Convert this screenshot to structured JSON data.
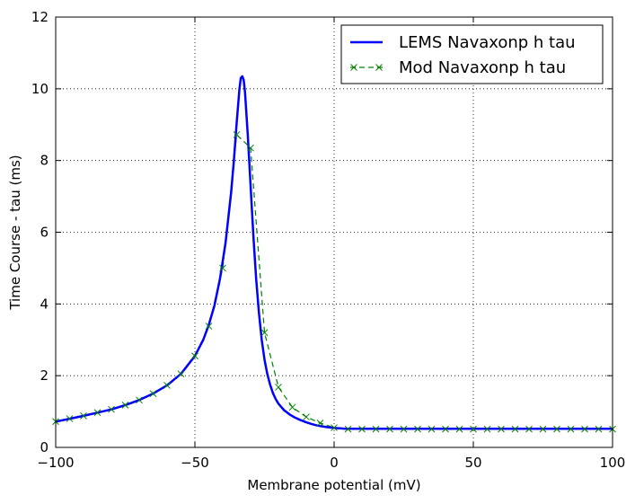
{
  "chart_data": {
    "type": "line",
    "title": "",
    "xlabel": "Membrane potential (mV)",
    "ylabel": "Time Course - tau (ms)",
    "xlim": [
      -100,
      100
    ],
    "ylim": [
      0,
      12
    ],
    "x_ticks": [
      -100,
      -50,
      0,
      50,
      100
    ],
    "y_ticks": [
      0,
      2,
      4,
      6,
      8,
      10,
      12
    ],
    "x_tick_labels": [
      "−100",
      "−50",
      "0",
      "50",
      "100"
    ],
    "y_tick_labels": [
      "0",
      "2",
      "4",
      "6",
      "8",
      "10",
      "12"
    ],
    "grid": true,
    "legend_position": "top-right",
    "series": [
      {
        "name": "LEMS Navaxonp h tau",
        "style": "solid",
        "color": "#0000ff",
        "x": [
          -100,
          -95,
          -90,
          -85,
          -80,
          -75,
          -70,
          -65,
          -60,
          -55,
          -50,
          -47,
          -45,
          -43,
          -41,
          -39,
          -37,
          -36,
          -35,
          -34,
          -33.5,
          -33,
          -32.5,
          -32,
          -31,
          -30,
          -29,
          -28,
          -27,
          -26,
          -25,
          -24,
          -23,
          -22,
          -21,
          -20,
          -18,
          -16,
          -14,
          -12,
          -10,
          -8,
          -6,
          -4,
          -2,
          0,
          2,
          4,
          6,
          10,
          20,
          40,
          60,
          80,
          100
        ],
        "y": [
          0.72,
          0.8,
          0.88,
          0.97,
          1.06,
          1.18,
          1.32,
          1.5,
          1.73,
          2.05,
          2.55,
          3.0,
          3.42,
          3.95,
          4.7,
          5.7,
          7.1,
          8.0,
          9.05,
          10.0,
          10.3,
          10.35,
          10.25,
          9.9,
          8.7,
          7.3,
          5.9,
          4.7,
          3.75,
          3.0,
          2.45,
          2.05,
          1.75,
          1.52,
          1.35,
          1.22,
          1.04,
          0.92,
          0.83,
          0.76,
          0.7,
          0.65,
          0.61,
          0.58,
          0.56,
          0.54,
          0.53,
          0.52,
          0.52,
          0.52,
          0.52,
          0.52,
          0.52,
          0.52,
          0.52
        ]
      },
      {
        "name": "Mod Navaxonp h tau",
        "style": "dashed",
        "marker": "x",
        "color": "#008000",
        "x": [
          -100,
          -95,
          -90,
          -85,
          -80,
          -75,
          -70,
          -65,
          -60,
          -55,
          -50,
          -45,
          -40,
          -35,
          -30,
          -25,
          -20,
          -15,
          -10,
          -5,
          0,
          5,
          10,
          15,
          20,
          25,
          30,
          35,
          40,
          45,
          50,
          55,
          60,
          65,
          70,
          75,
          80,
          85,
          90,
          95,
          100
        ],
        "y": [
          0.72,
          0.8,
          0.88,
          0.97,
          1.06,
          1.18,
          1.32,
          1.5,
          1.73,
          2.05,
          2.55,
          3.38,
          5.0,
          8.72,
          8.35,
          3.2,
          1.68,
          1.12,
          0.85,
          0.68,
          0.55,
          0.51,
          0.51,
          0.51,
          0.51,
          0.51,
          0.51,
          0.51,
          0.51,
          0.51,
          0.51,
          0.51,
          0.51,
          0.51,
          0.51,
          0.51,
          0.51,
          0.51,
          0.51,
          0.51,
          0.51
        ]
      }
    ]
  }
}
